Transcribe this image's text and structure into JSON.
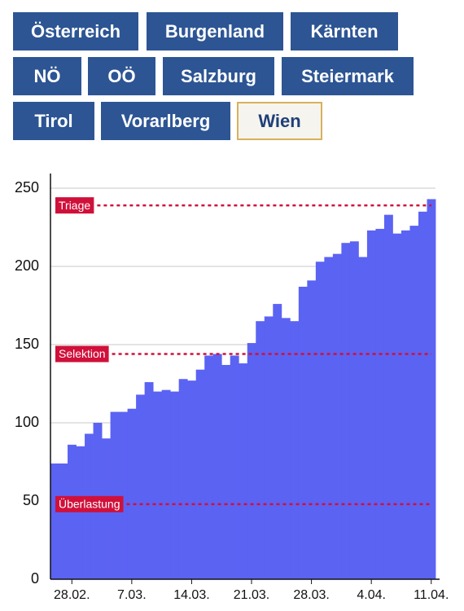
{
  "buttons": [
    {
      "label": "Österreich"
    },
    {
      "label": "Burgenland"
    },
    {
      "label": "Kärnten"
    },
    {
      "label": "NÖ"
    },
    {
      "label": "OÖ"
    },
    {
      "label": "Salzburg"
    },
    {
      "label": "Steiermark"
    },
    {
      "label": "Tirol"
    },
    {
      "label": "Vorarlberg"
    },
    {
      "label": "Wien",
      "selected": true
    }
  ],
  "chart_data": {
    "type": "bar",
    "categories": [
      null,
      null,
      "28.02.",
      null,
      null,
      null,
      null,
      null,
      null,
      "7.03.",
      null,
      null,
      null,
      null,
      null,
      null,
      "14.03.",
      null,
      null,
      null,
      null,
      null,
      null,
      "21.03.",
      null,
      null,
      null,
      null,
      null,
      null,
      "28.03.",
      null,
      null,
      null,
      null,
      null,
      null,
      "4.04.",
      null,
      null,
      null,
      null,
      null,
      null,
      "11.04."
    ],
    "values": [
      74,
      74,
      86,
      85,
      93,
      100,
      90,
      107,
      107,
      109,
      118,
      126,
      120,
      121,
      120,
      128,
      127,
      134,
      143,
      144,
      137,
      143,
      138,
      151,
      165,
      168,
      176,
      167,
      165,
      187,
      191,
      203,
      206,
      208,
      215,
      216,
      206,
      223,
      224,
      233,
      221,
      223,
      226,
      235,
      243
    ],
    "color": "#5b63f3",
    "ylim": [
      0,
      250
    ],
    "yticks": [
      0,
      50,
      100,
      150,
      200,
      250
    ],
    "grid": true,
    "reference_lines": [
      {
        "label": "Triage",
        "value": 239
      },
      {
        "label": "Selektion",
        "value": 144
      },
      {
        "label": "Überlastung",
        "value": 48
      }
    ],
    "reference_color": "#d0103a"
  }
}
